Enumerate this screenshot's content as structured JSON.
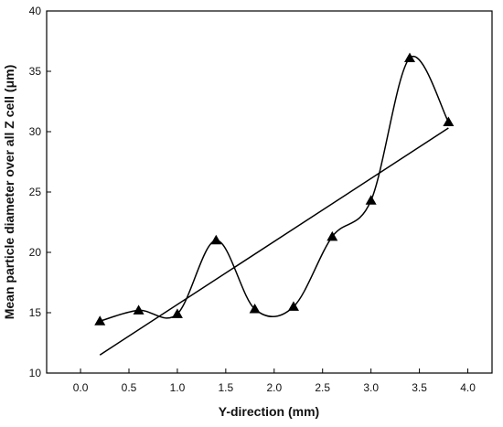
{
  "chart_data": {
    "type": "scatter",
    "title": "",
    "xlabel": "Y-direction (mm)",
    "ylabel": "Mean particle diameter over all Z cell (μm)",
    "xlim": [
      -0.35,
      4.25
    ],
    "ylim": [
      10,
      40
    ],
    "xticks": [
      "0.0",
      "0.5",
      "1.0",
      "1.5",
      "2.0",
      "2.5",
      "3.0",
      "3.5",
      "4.0"
    ],
    "yticks": [
      "10",
      "15",
      "20",
      "25",
      "30",
      "35",
      "40"
    ],
    "grid": false,
    "legend": "none",
    "series": [
      {
        "marker": "triangle",
        "smooth_curve": true,
        "x": [
          0.2,
          0.6,
          1.0,
          1.4,
          1.8,
          2.2,
          2.6,
          3.0,
          3.4,
          3.8
        ],
        "y": [
          14.3,
          15.2,
          14.9,
          21.0,
          15.3,
          15.5,
          21.3,
          24.3,
          36.1,
          30.8
        ]
      }
    ],
    "fit_line": {
      "x": [
        0.2,
        3.8
      ],
      "y": [
        11.5,
        30.3
      ]
    },
    "colors": {
      "line": "#000000",
      "marker": "#000000"
    }
  }
}
